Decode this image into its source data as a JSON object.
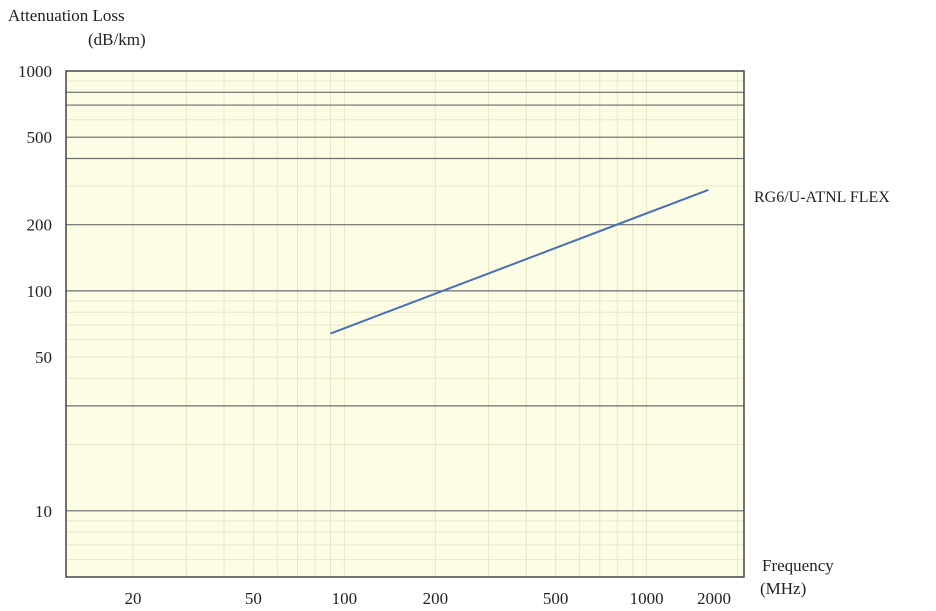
{
  "chart_data": {
    "type": "line",
    "title": "",
    "ylabel_line1": "Attenuation Loss",
    "ylabel_line2": "(dB/km)",
    "xlabel_line1": "Frequency",
    "xlabel_line2": "(MHz)",
    "x_scale": "log",
    "y_scale": "log",
    "xlim": [
      12,
      2100
    ],
    "ylim": [
      5,
      1000
    ],
    "y_tick_labels": [
      "1000",
      "500",
      "200",
      "100",
      "50",
      "10"
    ],
    "x_tick_labels": [
      "20",
      "50",
      "100",
      "200",
      "500",
      "1000",
      "2000"
    ],
    "x_ticks": [
      20,
      50,
      100,
      200,
      500,
      1000,
      2000
    ],
    "y_ticks": [
      1000,
      500,
      200,
      100,
      50,
      10
    ],
    "y_gridlines": [
      800,
      700,
      500,
      400,
      200,
      100,
      30,
      10
    ],
    "grid": true,
    "series": [
      {
        "name": "RG6/U-ATNL FLEX",
        "x": [
          90,
          1600
        ],
        "y": [
          64,
          288
        ]
      }
    ],
    "colors": {
      "plot_background": "#fdfde6",
      "major_grid": "#6e6e6e",
      "minor_grid": "#e6e6c8",
      "series_line": "#4a6fb5",
      "frame": "#444444"
    }
  }
}
